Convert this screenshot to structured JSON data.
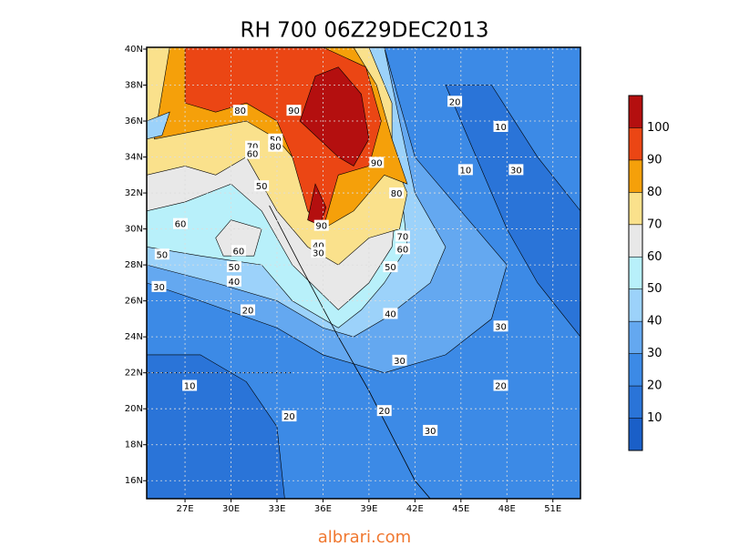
{
  "title": "RH 700 06Z29DEC2013",
  "map": {
    "type": "contour",
    "xlim": [
      24.5,
      52.8
    ],
    "ylim": [
      15,
      40.1
    ],
    "xticks": [
      {
        "value": 27,
        "label": "27E"
      },
      {
        "value": 30,
        "label": "30E"
      },
      {
        "value": 33,
        "label": "33E"
      },
      {
        "value": 36,
        "label": "36E"
      },
      {
        "value": 39,
        "label": "39E"
      },
      {
        "value": 42,
        "label": "42E"
      },
      {
        "value": 45,
        "label": "45E"
      },
      {
        "value": 48,
        "label": "48E"
      },
      {
        "value": 51,
        "label": "51E"
      }
    ],
    "yticks": [
      {
        "value": 16,
        "label": "16N"
      },
      {
        "value": 18,
        "label": "18N"
      },
      {
        "value": 20,
        "label": "20N"
      },
      {
        "value": 22,
        "label": "22N"
      },
      {
        "value": 24,
        "label": "24N"
      },
      {
        "value": 26,
        "label": "26N"
      },
      {
        "value": 28,
        "label": "28N"
      },
      {
        "value": 30,
        "label": "30N"
      },
      {
        "value": 32,
        "label": "32N"
      },
      {
        "value": 34,
        "label": "34N"
      },
      {
        "value": 36,
        "label": "36N"
      },
      {
        "value": 38,
        "label": "38N"
      },
      {
        "value": 40,
        "label": "40N"
      }
    ],
    "grid": true,
    "contour_labels": [
      80,
      90,
      70,
      50,
      80,
      60,
      20,
      10,
      10,
      30,
      90,
      80,
      90,
      70,
      60,
      50,
      40,
      30,
      60,
      50,
      60,
      50,
      40,
      30,
      20,
      40,
      30,
      10,
      20,
      20,
      30,
      30,
      20,
      50
    ]
  },
  "colorbar": {
    "levels": [
      10,
      20,
      30,
      40,
      50,
      60,
      70,
      80,
      90,
      100
    ],
    "colors": [
      "#1a5fc8",
      "#2a74d8",
      "#3c8ae6",
      "#64a8f0",
      "#9cd2fa",
      "#b8f0fa",
      "#e8e8e8",
      "#fae18c",
      "#f5a00a",
      "#eb4614",
      "#b40f0f"
    ]
  },
  "watermark": "albrari.com"
}
